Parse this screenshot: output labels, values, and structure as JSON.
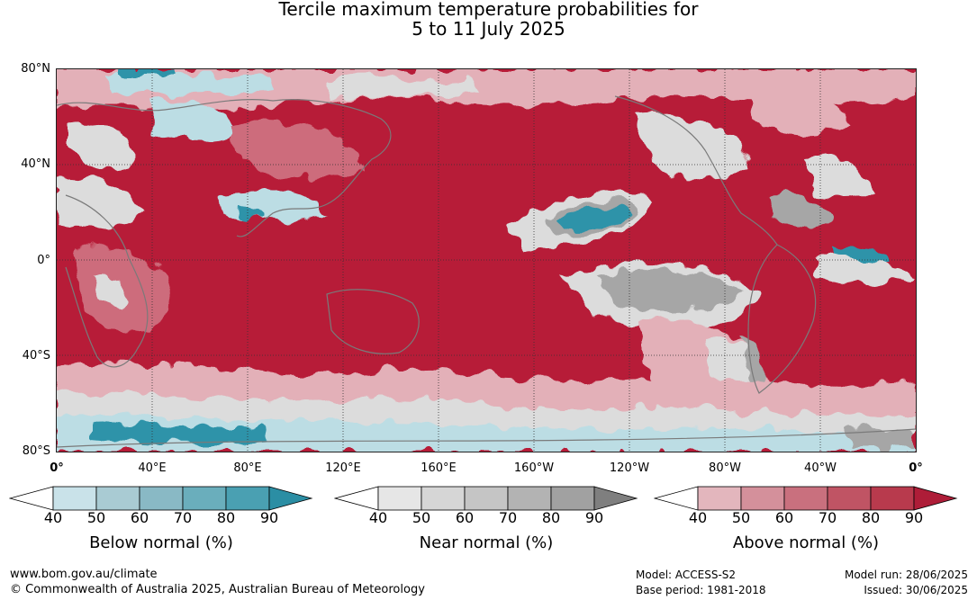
{
  "title_line1": "Tercile maximum temperature probabilities for",
  "title_line2": "5 to 11 July 2025",
  "lat_labels": [
    "80°N",
    "40°N",
    "0°",
    "40°S",
    "80°S"
  ],
  "lon_labels": [
    "0°",
    "40°E",
    "80°E",
    "120°E",
    "160°E",
    "160°W",
    "120°W",
    "80°W",
    "40°W",
    "0°"
  ],
  "colorbars": [
    {
      "label": "Below normal (%)",
      "ticks": [
        "40",
        "50",
        "60",
        "70",
        "80",
        "90"
      ],
      "colors": [
        "#ffffff",
        "#c9e2e9",
        "#a9cbd3",
        "#89b9c5",
        "#6aaebc",
        "#4aa0b2",
        "#2b8ea4"
      ]
    },
    {
      "label": "Near normal (%)",
      "ticks": [
        "40",
        "50",
        "60",
        "70",
        "80",
        "90"
      ],
      "colors": [
        "#ffffff",
        "#e6e6e6",
        "#d6d6d6",
        "#c5c5c5",
        "#b3b3b3",
        "#a1a1a1",
        "#7f7f7f"
      ]
    },
    {
      "label": "Above normal (%)",
      "ticks": [
        "40",
        "50",
        "60",
        "70",
        "80",
        "90"
      ],
      "colors": [
        "#ffffff",
        "#e3b6bd",
        "#d4909b",
        "#c9707e",
        "#c05464",
        "#b83a4d",
        "#ae1d38"
      ]
    }
  ],
  "footer": {
    "website": "www.bom.gov.au/climate",
    "copyright": "© Commonwealth of Australia 2025, Australian Bureau of Meteorology",
    "model": "Model: ACCESS-S2",
    "base_period": "Base period: 1981-2018",
    "model_run": "Model run: 28/06/2025",
    "issued": "Issued: 30/06/2025"
  },
  "map_colors": {
    "ocean_above": "#b71c38",
    "above_light": "#e3b0b8",
    "above_mid": "#cd6c7c",
    "near": "#a6a6a6",
    "near_light": "#dcdcdc",
    "below": "#2e93a9",
    "below_light": "#bcdde4",
    "coast": "#7a7a7a"
  }
}
